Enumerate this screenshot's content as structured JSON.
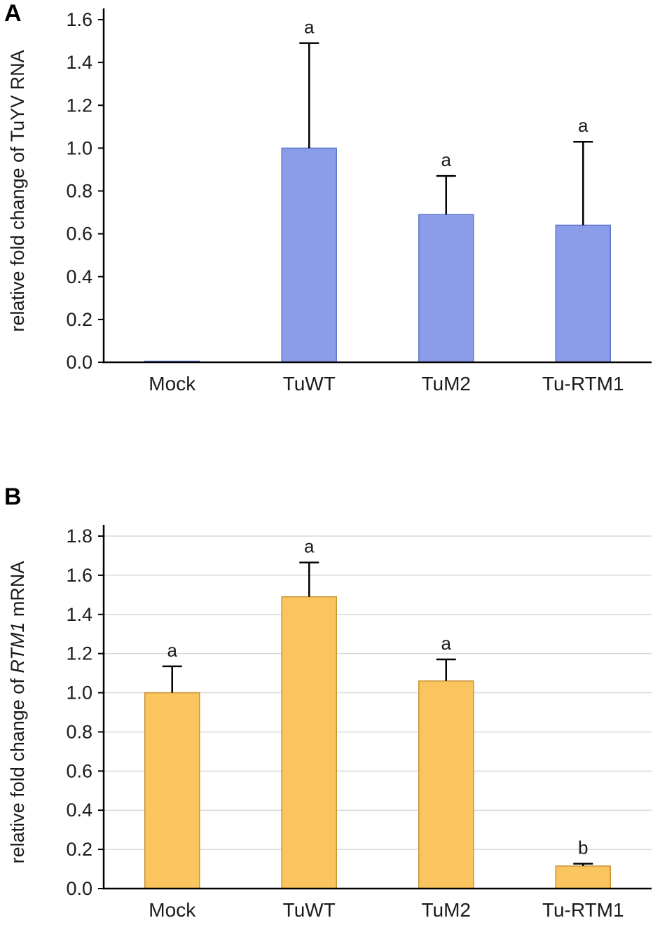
{
  "panels": [
    {
      "label": "A"
    },
    {
      "label": "B"
    }
  ],
  "chart_data": [
    {
      "type": "bar",
      "panel": "A",
      "title": "",
      "categories": [
        "Mock",
        "TuWT",
        "TuM2",
        "Tu-RTM1"
      ],
      "values": [
        0.005,
        1.0,
        0.69,
        0.64
      ],
      "errors_up": [
        0,
        0.49,
        0.18,
        0.39
      ],
      "sig_labels": [
        "",
        "a",
        "a",
        "a"
      ],
      "ylabel": "relative fold change of TuYV RNA",
      "ylabel_parts": [
        {
          "text": "relative fold change of TuYV RNA",
          "italic": false
        }
      ],
      "xlabel": "",
      "ylim": [
        0,
        1.6
      ],
      "ytick_step": 0.2,
      "yticks": [
        "0.0",
        "0.2",
        "0.4",
        "0.6",
        "0.8",
        "1.0",
        "1.2",
        "1.4",
        "1.6"
      ],
      "gridlines": false,
      "legend": "none",
      "bar_color": "#8B9CE8",
      "bar_border_color": "#5F75CE",
      "error_bar_color": "#000000",
      "axis_color": "#000000",
      "grid_color": "#D9D9D9",
      "text_color": "#1a1a1a"
    },
    {
      "type": "bar",
      "panel": "B",
      "title": "",
      "categories": [
        "Mock",
        "TuWT",
        "TuM2",
        "Tu-RTM1"
      ],
      "values": [
        1.0,
        1.49,
        1.06,
        0.115
      ],
      "errors_up": [
        0.135,
        0.175,
        0.11,
        0.012
      ],
      "sig_labels": [
        "a",
        "a",
        "a",
        "b"
      ],
      "ylabel": "relative fold change of RTM1 mRNA",
      "ylabel_parts": [
        {
          "text": "relative fold change of ",
          "italic": false
        },
        {
          "text": "RTM1",
          "italic": true
        },
        {
          "text": " mRNA",
          "italic": false
        }
      ],
      "xlabel": "",
      "ylim": [
        0,
        1.8
      ],
      "ytick_step": 0.2,
      "yticks": [
        "0.0",
        "0.2",
        "0.4",
        "0.6",
        "0.8",
        "1.0",
        "1.2",
        "1.4",
        "1.6",
        "1.8"
      ],
      "gridlines": true,
      "legend": "none",
      "bar_color": "#FAC45F",
      "bar_border_color": "#C89232",
      "error_bar_color": "#000000",
      "axis_color": "#000000",
      "grid_color": "#D9D9D9",
      "text_color": "#1a1a1a"
    }
  ]
}
